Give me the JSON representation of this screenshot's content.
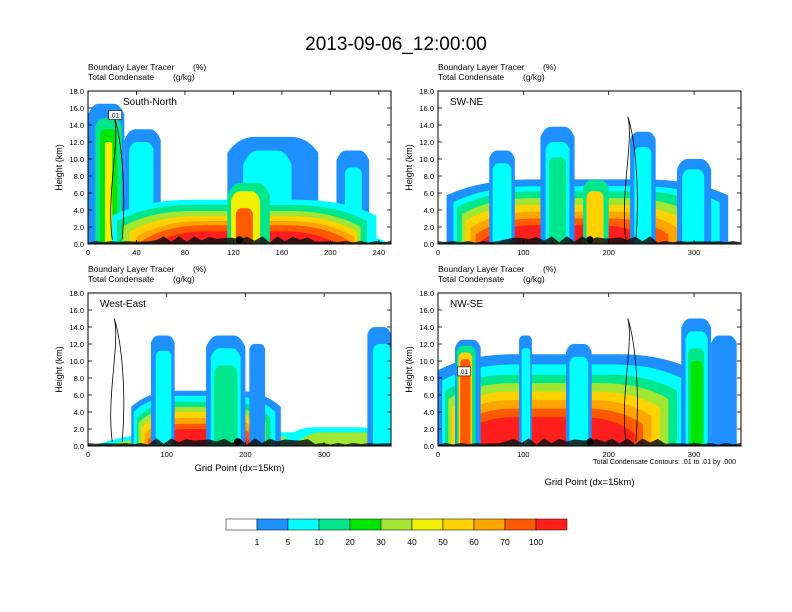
{
  "figure": {
    "title": "2013-09-06_12:00:00",
    "footnote": "Total Condensate Contours: .01 to .01 by .000"
  },
  "colors": {
    "levels": [
      "#ffffff",
      "#1e90ff",
      "#00ffff",
      "#00e68c",
      "#00e600",
      "#a0e632",
      "#f0f000",
      "#ffd200",
      "#ffa500",
      "#ff5a00",
      "#ff1e1e"
    ],
    "contour": "#000000"
  },
  "chart_data": [
    {
      "type": "contour-cross-section",
      "title": "South-North",
      "label_left_1": "Boundary Layer Tracer",
      "label_unit_1": "(%)",
      "label_left_2": "Total Condensate",
      "label_unit_2": "(g/kg)",
      "ylabel": "Height (km)",
      "xlabel": "",
      "xlim": [
        0,
        250
      ],
      "ylim": [
        0,
        18
      ],
      "xticks": [
        "0",
        "40",
        "80",
        "120",
        "160",
        "200",
        "240"
      ],
      "xtick_values": [
        0,
        40,
        80,
        120,
        160,
        200,
        240
      ],
      "yticks": [
        "0.0",
        "2.0",
        "4.0",
        "6.0",
        "8.0",
        "10.0",
        "12.0",
        "14.0",
        "16.0",
        "18.0"
      ],
      "contour_label": ".01",
      "marker_x": 125
    },
    {
      "type": "contour-cross-section",
      "title": "SW-NE",
      "label_left_1": "Boundary Layer Tracer",
      "label_unit_1": "(%)",
      "label_left_2": "Total Condensate",
      "label_unit_2": "(g/kg)",
      "ylabel": "Height (km)",
      "xlabel": "",
      "xlim": [
        0,
        355
      ],
      "ylim": [
        0,
        18
      ],
      "xticks": [
        "0",
        "100",
        "200",
        "300"
      ],
      "xtick_values": [
        0,
        100,
        200,
        300
      ],
      "yticks": [
        "0.0",
        "2.0",
        "4.0",
        "6.0",
        "8.0",
        "10.0",
        "12.0",
        "14.0",
        "16.0",
        "18.0"
      ],
      "contour_label": "",
      "marker_x": 178
    },
    {
      "type": "contour-cross-section",
      "title": "West-East",
      "label_left_1": "Boundary Layer Tracer",
      "label_unit_1": "(%)",
      "label_left_2": "Total Condensate",
      "label_unit_2": "(g/kg)",
      "ylabel": "Height (km)",
      "xlabel": "Grid Point (dx=15km)",
      "xlim": [
        0,
        385
      ],
      "ylim": [
        0,
        18
      ],
      "xticks": [
        "0",
        "100",
        "200",
        "300"
      ],
      "xtick_values": [
        0,
        100,
        200,
        300
      ],
      "yticks": [
        "0.0",
        "2.0",
        "4.0",
        "6.0",
        "8.0",
        "10.0",
        "12.0",
        "14.0",
        "16.0",
        "18.0"
      ],
      "contour_label": "",
      "marker_x": 190
    },
    {
      "type": "contour-cross-section",
      "title": "NW-SE",
      "label_left_1": "Boundary Layer Tracer",
      "label_unit_1": "(%)",
      "label_left_2": "Total Condensate",
      "label_unit_2": "(g/kg)",
      "ylabel": "Height (km)",
      "xlabel": "Grid Point (dx=15km)",
      "xlim": [
        0,
        355
      ],
      "ylim": [
        0,
        18
      ],
      "xticks": [
        "0",
        "100",
        "200",
        "300"
      ],
      "xtick_values": [
        0,
        100,
        200,
        300
      ],
      "yticks": [
        "0.0",
        "2.0",
        "4.0",
        "6.0",
        "8.0",
        "10.0",
        "12.0",
        "14.0",
        "16.0",
        "18.0"
      ],
      "contour_label": ".01",
      "marker_x": 178
    }
  ],
  "colorbar": {
    "labels": [
      "1",
      "5",
      "10",
      "20",
      "30",
      "40",
      "50",
      "60",
      "70",
      "100"
    ]
  }
}
